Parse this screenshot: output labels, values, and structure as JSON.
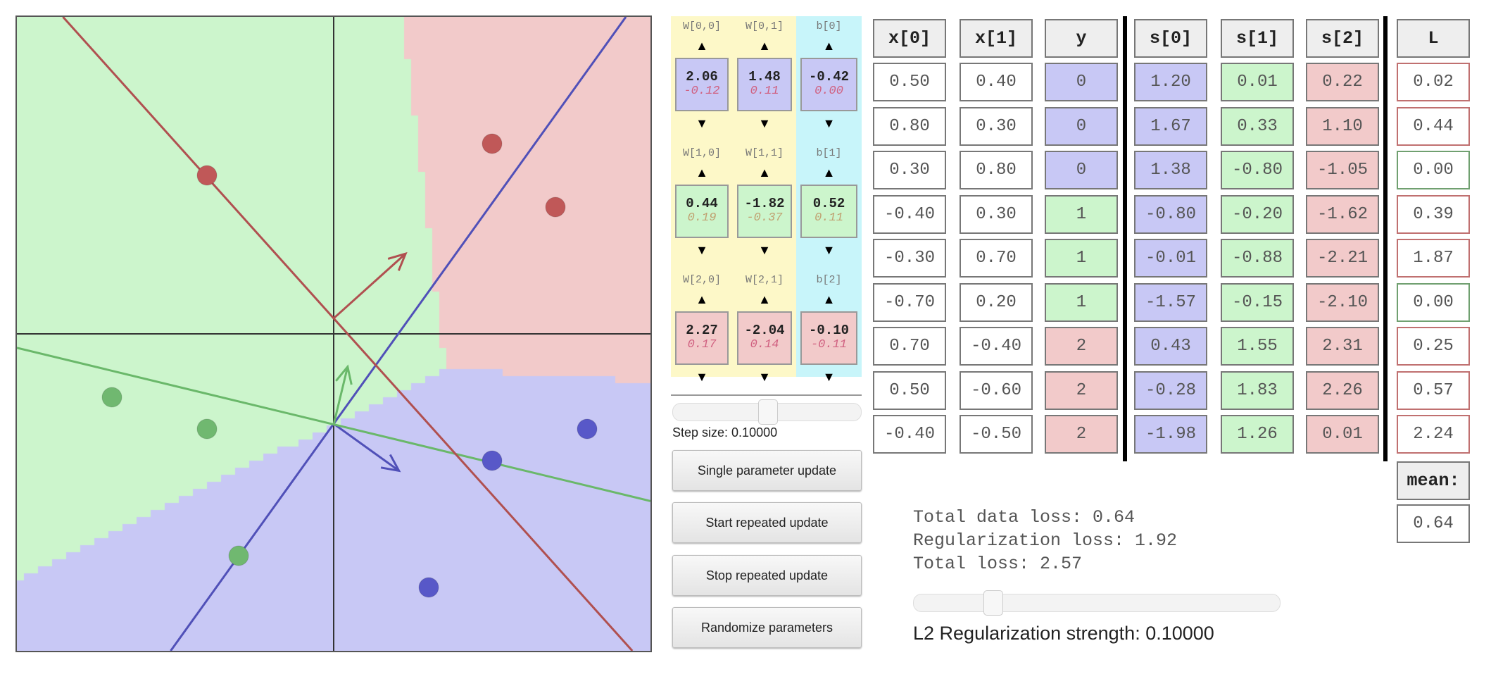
{
  "colors": {
    "class0": "#c8c8f5",
    "class1": "#ccf5cc",
    "class2": "#f2caca",
    "line0": "#5050b8",
    "line1": "#6ab86a",
    "line2": "#b05050",
    "params_yellow": "#fdf8c8",
    "params_cyan": "#c8f5fa"
  },
  "plot": {
    "x_range": [
      -1,
      1
    ],
    "y_range": [
      -1,
      1
    ],
    "y_axis_direction": "down",
    "points": [
      {
        "x": 0.5,
        "y": 0.4,
        "class": 0
      },
      {
        "x": 0.8,
        "y": 0.3,
        "class": 0
      },
      {
        "x": 0.3,
        "y": 0.8,
        "class": 0
      },
      {
        "x": -0.4,
        "y": 0.3,
        "class": 1
      },
      {
        "x": -0.3,
        "y": 0.7,
        "class": 1
      },
      {
        "x": -0.7,
        "y": 0.2,
        "class": 1
      },
      {
        "x": 0.7,
        "y": -0.4,
        "class": 2
      },
      {
        "x": 0.5,
        "y": -0.6,
        "class": 2
      },
      {
        "x": -0.4,
        "y": -0.5,
        "class": 2
      }
    ]
  },
  "params": {
    "rows": [
      {
        "labels": [
          "W[0,0]",
          "W[0,1]",
          "b[0]"
        ],
        "values": [
          "2.06",
          "1.48",
          "-0.42"
        ],
        "grads": [
          "-0.12",
          "0.11",
          "0.00"
        ]
      },
      {
        "labels": [
          "W[1,0]",
          "W[1,1]",
          "b[1]"
        ],
        "values": [
          "0.44",
          "-1.82",
          "0.52"
        ],
        "grads": [
          "0.19",
          "-0.37",
          "0.11"
        ]
      },
      {
        "labels": [
          "W[2,0]",
          "W[2,1]",
          "b[2]"
        ],
        "values": [
          "2.27",
          "-2.04",
          "-0.10"
        ],
        "grads": [
          "0.17",
          "0.14",
          "-0.11"
        ]
      }
    ],
    "up_icon": "▲",
    "down_icon": "▼"
  },
  "controls": {
    "step_size_label": "Step size: 0.10000",
    "step_slider_value": 0.5,
    "buttons": [
      "Single parameter update",
      "Start repeated update",
      "Stop repeated update",
      "Randomize parameters"
    ]
  },
  "table": {
    "headers": [
      "x[0]",
      "x[1]",
      "y",
      "s[0]",
      "s[1]",
      "s[2]",
      "L"
    ],
    "rows": [
      [
        "0.50",
        "0.40",
        "0",
        "1.20",
        "0.01",
        "0.22",
        "0.02"
      ],
      [
        "0.80",
        "0.30",
        "0",
        "1.67",
        "0.33",
        "1.10",
        "0.44"
      ],
      [
        "0.30",
        "0.80",
        "0",
        "1.38",
        "-0.80",
        "-1.05",
        "0.00"
      ],
      [
        "-0.40",
        "0.30",
        "1",
        "-0.80",
        "-0.20",
        "-1.62",
        "0.39"
      ],
      [
        "-0.30",
        "0.70",
        "1",
        "-0.01",
        "-0.88",
        "-2.21",
        "1.87"
      ],
      [
        "-0.70",
        "0.20",
        "1",
        "-1.57",
        "-0.15",
        "-2.10",
        "0.00"
      ],
      [
        "0.70",
        "-0.40",
        "2",
        "0.43",
        "1.55",
        "2.31",
        "0.25"
      ],
      [
        "0.50",
        "-0.60",
        "2",
        "-0.28",
        "1.83",
        "2.26",
        "0.57"
      ],
      [
        "-0.40",
        "-0.50",
        "2",
        "-1.98",
        "1.26",
        "0.01",
        "2.24"
      ]
    ],
    "loss_border_colors": [
      "#c07070",
      "#c07070",
      "#70a070",
      "#c07070",
      "#c07070",
      "#70a070",
      "#c07070",
      "#c07070",
      "#c07070"
    ],
    "mean_label": "mean:",
    "mean_value": "0.64"
  },
  "summary": {
    "data_loss": "Total data loss: 0.64",
    "reg_loss": "Regularization loss: 1.92",
    "total_loss": "Total loss: 2.57",
    "reg_label": "L2 Regularization strength: 0.10000",
    "reg_slider_value": 0.2
  }
}
